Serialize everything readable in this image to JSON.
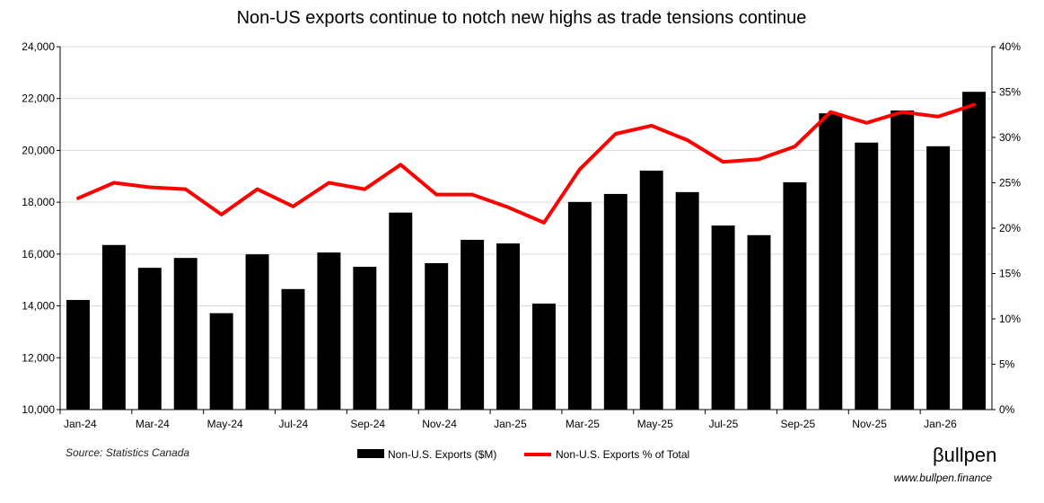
{
  "chart_data": {
    "type": "bar",
    "title": "Non-US exports continue to notch new highs as trade tensions continue",
    "categories": [
      "Jan-24",
      "Feb-24",
      "Mar-24",
      "Apr-24",
      "May-24",
      "Jun-24",
      "Jul-24",
      "Aug-24",
      "Sep-24",
      "Oct-24",
      "Nov-24",
      "Dec-24",
      "Jan-25",
      "Feb-25",
      "Mar-25",
      "Apr-25",
      "May-25",
      "Jun-25",
      "Jul-25",
      "Aug-25",
      "Sep-25",
      "Oct-25",
      "Nov-25",
      "Dec-25",
      "Jan-26",
      "Feb-26"
    ],
    "x_tick_labels": [
      "Jan-24",
      "Mar-24",
      "May-24",
      "Jul-24",
      "Sep-24",
      "Nov-24",
      "Jan-25",
      "Mar-25",
      "May-25",
      "Jul-25",
      "Sep-25",
      "Nov-25",
      "Jan-26"
    ],
    "series": [
      {
        "name": "Non-U.S. Exports ($M)",
        "type": "bar",
        "axis": "left",
        "color": "#000000",
        "values": [
          14230,
          16350,
          15470,
          15850,
          13720,
          15990,
          14650,
          16060,
          15510,
          17600,
          15650,
          16550,
          16410,
          14090,
          18010,
          18320,
          19220,
          18390,
          17100,
          16730,
          18770,
          21430,
          20300,
          21540,
          20160,
          22260
        ]
      },
      {
        "name": "Non-U.S. Exports % of Total",
        "type": "line",
        "axis": "right",
        "color": "#ff0000",
        "values": [
          23.3,
          25.0,
          24.5,
          24.3,
          21.5,
          24.3,
          22.4,
          25.0,
          24.3,
          27.0,
          23.7,
          23.7,
          22.3,
          20.6,
          26.5,
          30.4,
          31.3,
          29.7,
          27.3,
          27.6,
          29.0,
          32.8,
          31.6,
          32.8,
          32.3,
          33.6
        ]
      }
    ],
    "ylim_left": [
      10000,
      24000
    ],
    "yticks_left": [
      "10,000",
      "12,000",
      "14,000",
      "16,000",
      "18,000",
      "20,000",
      "22,000",
      "24,000"
    ],
    "ylim_right": [
      0,
      40
    ],
    "yticks_right": [
      "0%",
      "5%",
      "10%",
      "15%",
      "20%",
      "25%",
      "30%",
      "35%",
      "40%"
    ],
    "grid": true,
    "legend_position": "bottom-center"
  },
  "footer": {
    "source": "Source: Statistics Canada",
    "brand_beta": "β",
    "brand_name": "ullpen",
    "website": "www.bullpen.finance"
  }
}
